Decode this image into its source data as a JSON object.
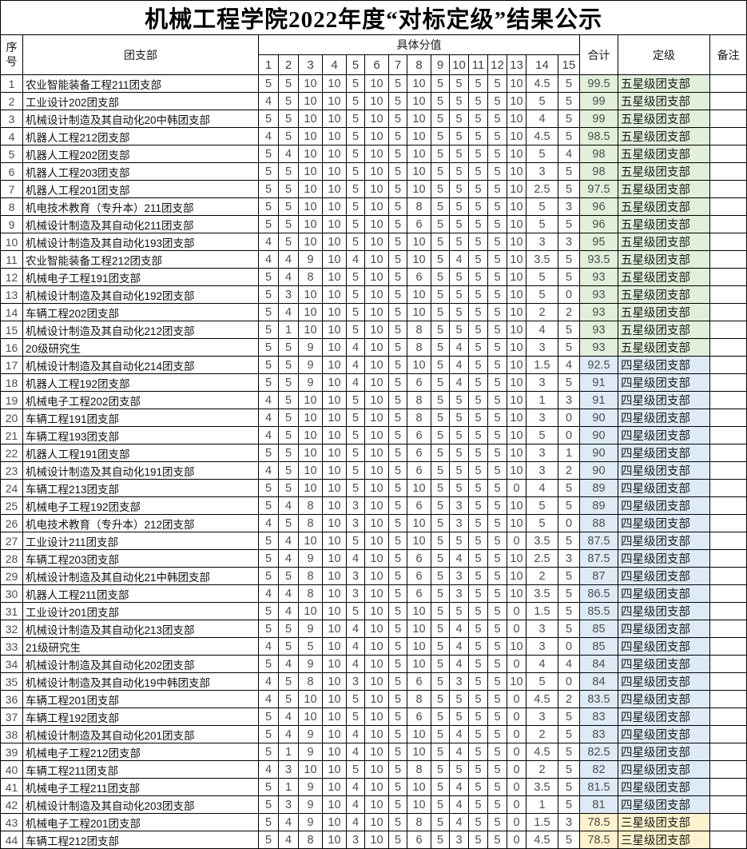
{
  "title": "机械工程学院2022年度“对标定级”结果公示",
  "colors": {
    "five_star_bg": "#E2EFDA",
    "four_star_bg": "#DEEBF7",
    "three_star_bg": "#FFF2CC"
  },
  "table": {
    "header": {
      "index": "序号",
      "branch": "团支部",
      "score_group": "具体分值",
      "score_numbers": [
        "1",
        "2",
        "3",
        "4",
        "5",
        "6",
        "7",
        "8",
        "9",
        "10",
        "11",
        "12",
        "13",
        "14",
        "15"
      ],
      "total": "合计",
      "rating": "定级",
      "remark": "备注"
    },
    "rows": [
      {
        "no": "1",
        "name": "农业智能装备工程211团支部",
        "scores": [
          "5",
          "5",
          "10",
          "10",
          "5",
          "10",
          "5",
          "10",
          "5",
          "5",
          "5",
          "5",
          "10",
          "4.5",
          "5"
        ],
        "total": "99.5",
        "rating": "五星级团支部",
        "tier": "five"
      },
      {
        "no": "2",
        "name": "工业设计202团支部",
        "scores": [
          "4",
          "5",
          "10",
          "10",
          "5",
          "10",
          "5",
          "10",
          "5",
          "5",
          "5",
          "5",
          "10",
          "5",
          "5"
        ],
        "total": "99",
        "rating": "五星级团支部",
        "tier": "five"
      },
      {
        "no": "3",
        "name": "机械设计制造及其自动化20中韩团支部",
        "scores": [
          "5",
          "5",
          "10",
          "10",
          "5",
          "10",
          "5",
          "10",
          "5",
          "5",
          "5",
          "5",
          "10",
          "4",
          "5"
        ],
        "total": "99",
        "rating": "五星级团支部",
        "tier": "five"
      },
      {
        "no": "4",
        "name": "机器人工程212团支部",
        "scores": [
          "4",
          "5",
          "10",
          "10",
          "5",
          "10",
          "5",
          "10",
          "5",
          "5",
          "5",
          "5",
          "10",
          "4.5",
          "5"
        ],
        "total": "98.5",
        "rating": "五星级团支部",
        "tier": "five"
      },
      {
        "no": "5",
        "name": "机器人工程202团支部",
        "scores": [
          "5",
          "4",
          "10",
          "10",
          "5",
          "10",
          "5",
          "10",
          "5",
          "5",
          "5",
          "5",
          "10",
          "5",
          "4"
        ],
        "total": "98",
        "rating": "五星级团支部",
        "tier": "five"
      },
      {
        "no": "6",
        "name": "机器人工程203团支部",
        "scores": [
          "5",
          "5",
          "10",
          "10",
          "5",
          "10",
          "5",
          "10",
          "5",
          "5",
          "5",
          "5",
          "10",
          "3",
          "5"
        ],
        "total": "98",
        "rating": "五星级团支部",
        "tier": "five"
      },
      {
        "no": "7",
        "name": "机器人工程201团支部",
        "scores": [
          "5",
          "5",
          "10",
          "10",
          "5",
          "10",
          "5",
          "10",
          "5",
          "5",
          "5",
          "5",
          "10",
          "2.5",
          "5"
        ],
        "total": "97.5",
        "rating": "五星级团支部",
        "tier": "five"
      },
      {
        "no": "8",
        "name": "机电技术教育（专升本）211团支部",
        "scores": [
          "5",
          "5",
          "10",
          "10",
          "5",
          "10",
          "5",
          "8",
          "5",
          "5",
          "5",
          "5",
          "10",
          "5",
          "3"
        ],
        "total": "96",
        "rating": "五星级团支部",
        "tier": "five"
      },
      {
        "no": "9",
        "name": "机械设计制造及其自动化211团支部",
        "scores": [
          "5",
          "5",
          "10",
          "10",
          "5",
          "10",
          "5",
          "6",
          "5",
          "5",
          "5",
          "5",
          "10",
          "5",
          "5"
        ],
        "total": "96",
        "rating": "五星级团支部",
        "tier": "five"
      },
      {
        "no": "10",
        "name": "机械设计制造及其自动化193团支部",
        "scores": [
          "4",
          "5",
          "10",
          "10",
          "5",
          "10",
          "5",
          "10",
          "5",
          "5",
          "5",
          "5",
          "10",
          "3",
          "3"
        ],
        "total": "95",
        "rating": "五星级团支部",
        "tier": "five"
      },
      {
        "no": "11",
        "name": "农业智能装备工程212团支部",
        "scores": [
          "4",
          "4",
          "9",
          "10",
          "4",
          "10",
          "5",
          "10",
          "5",
          "4",
          "5",
          "5",
          "10",
          "3.5",
          "5"
        ],
        "total": "93.5",
        "rating": "五星级团支部",
        "tier": "five"
      },
      {
        "no": "12",
        "name": "机械电子工程191团支部",
        "scores": [
          "5",
          "4",
          "8",
          "10",
          "5",
          "10",
          "5",
          "6",
          "5",
          "5",
          "5",
          "5",
          "10",
          "5",
          "5"
        ],
        "total": "93",
        "rating": "五星级团支部",
        "tier": "five"
      },
      {
        "no": "13",
        "name": "机械设计制造及其自动化192团支部",
        "scores": [
          "5",
          "3",
          "10",
          "10",
          "5",
          "10",
          "5",
          "10",
          "5",
          "5",
          "5",
          "5",
          "10",
          "5",
          "0"
        ],
        "total": "93",
        "rating": "五星级团支部",
        "tier": "five"
      },
      {
        "no": "14",
        "name": "车辆工程202团支部",
        "scores": [
          "5",
          "4",
          "10",
          "10",
          "5",
          "10",
          "5",
          "10",
          "5",
          "5",
          "5",
          "5",
          "10",
          "2",
          "2"
        ],
        "total": "93",
        "rating": "五星级团支部",
        "tier": "five"
      },
      {
        "no": "15",
        "name": "机械设计制造及其自动化212团支部",
        "scores": [
          "5",
          "1",
          "10",
          "10",
          "5",
          "10",
          "5",
          "8",
          "5",
          "5",
          "5",
          "5",
          "10",
          "4",
          "5"
        ],
        "total": "93",
        "rating": "五星级团支部",
        "tier": "five"
      },
      {
        "no": "16",
        "name": "20级研究生",
        "scores": [
          "5",
          "5",
          "9",
          "10",
          "4",
          "10",
          "5",
          "8",
          "5",
          "4",
          "5",
          "5",
          "10",
          "3",
          "5"
        ],
        "total": "93",
        "rating": "五星级团支部",
        "tier": "five"
      },
      {
        "no": "17",
        "name": "机械设计制造及其自动化214团支部",
        "scores": [
          "5",
          "5",
          "9",
          "10",
          "4",
          "10",
          "5",
          "10",
          "5",
          "4",
          "5",
          "5",
          "10",
          "1.5",
          "4"
        ],
        "total": "92.5",
        "rating": "四星级团支部",
        "tier": "four"
      },
      {
        "no": "18",
        "name": "机器人工程192团支部",
        "scores": [
          "5",
          "5",
          "9",
          "10",
          "4",
          "10",
          "5",
          "6",
          "5",
          "4",
          "5",
          "5",
          "10",
          "3",
          "5"
        ],
        "total": "91",
        "rating": "四星级团支部",
        "tier": "four"
      },
      {
        "no": "19",
        "name": "机械电子工程202团支部",
        "scores": [
          "4",
          "5",
          "10",
          "10",
          "5",
          "10",
          "5",
          "8",
          "5",
          "5",
          "5",
          "5",
          "10",
          "1",
          "3"
        ],
        "total": "91",
        "rating": "四星级团支部",
        "tier": "four"
      },
      {
        "no": "20",
        "name": "车辆工程191团支部",
        "scores": [
          "4",
          "5",
          "10",
          "10",
          "5",
          "10",
          "5",
          "8",
          "5",
          "5",
          "5",
          "5",
          "10",
          "3",
          "0"
        ],
        "total": "90",
        "rating": "四星级团支部",
        "tier": "four"
      },
      {
        "no": "21",
        "name": "车辆工程193团支部",
        "scores": [
          "4",
          "5",
          "10",
          "10",
          "5",
          "10",
          "5",
          "6",
          "5",
          "5",
          "5",
          "5",
          "10",
          "5",
          "0"
        ],
        "total": "90",
        "rating": "四星级团支部",
        "tier": "four"
      },
      {
        "no": "22",
        "name": "机器人工程191团支部",
        "scores": [
          "5",
          "5",
          "10",
          "10",
          "5",
          "10",
          "5",
          "6",
          "5",
          "5",
          "5",
          "5",
          "10",
          "3",
          "1"
        ],
        "total": "90",
        "rating": "四星级团支部",
        "tier": "four"
      },
      {
        "no": "23",
        "name": "机械设计制造及其自动化191团支部",
        "scores": [
          "4",
          "5",
          "10",
          "10",
          "5",
          "10",
          "5",
          "6",
          "5",
          "5",
          "5",
          "5",
          "10",
          "3",
          "2"
        ],
        "total": "90",
        "rating": "四星级团支部",
        "tier": "four"
      },
      {
        "no": "24",
        "name": "车辆工程213团支部",
        "scores": [
          "5",
          "5",
          "10",
          "10",
          "5",
          "10",
          "5",
          "10",
          "5",
          "5",
          "5",
          "5",
          "0",
          "4",
          "5"
        ],
        "total": "89",
        "rating": "四星级团支部",
        "tier": "four"
      },
      {
        "no": "25",
        "name": "机械电子工程192团支部",
        "scores": [
          "5",
          "4",
          "8",
          "10",
          "3",
          "10",
          "5",
          "6",
          "5",
          "3",
          "5",
          "5",
          "10",
          "5",
          "5"
        ],
        "total": "89",
        "rating": "四星级团支部",
        "tier": "four"
      },
      {
        "no": "26",
        "name": "机电技术教育（专升本）212团支部",
        "scores": [
          "4",
          "5",
          "8",
          "10",
          "3",
          "10",
          "5",
          "10",
          "5",
          "3",
          "5",
          "5",
          "10",
          "5",
          "0"
        ],
        "total": "88",
        "rating": "四星级团支部",
        "tier": "four"
      },
      {
        "no": "27",
        "name": "工业设计211团支部",
        "scores": [
          "5",
          "4",
          "10",
          "10",
          "5",
          "10",
          "5",
          "10",
          "5",
          "5",
          "5",
          "5",
          "0",
          "3.5",
          "5"
        ],
        "total": "87.5",
        "rating": "四星级团支部",
        "tier": "four"
      },
      {
        "no": "28",
        "name": "车辆工程203团支部",
        "scores": [
          "5",
          "4",
          "9",
          "10",
          "4",
          "10",
          "5",
          "6",
          "5",
          "4",
          "5",
          "5",
          "10",
          "2.5",
          "3"
        ],
        "total": "87.5",
        "rating": "四星级团支部",
        "tier": "four"
      },
      {
        "no": "29",
        "name": "机械设计制造及其自动化21中韩团支部",
        "scores": [
          "5",
          "5",
          "8",
          "10",
          "3",
          "10",
          "5",
          "6",
          "5",
          "3",
          "5",
          "5",
          "10",
          "2",
          "5"
        ],
        "total": "87",
        "rating": "四星级团支部",
        "tier": "four"
      },
      {
        "no": "30",
        "name": "机器人工程211团支部",
        "scores": [
          "4",
          "4",
          "8",
          "10",
          "3",
          "10",
          "5",
          "6",
          "5",
          "3",
          "5",
          "5",
          "10",
          "3.5",
          "5"
        ],
        "total": "86.5",
        "rating": "四星级团支部",
        "tier": "four"
      },
      {
        "no": "31",
        "name": "工业设计201团支部",
        "scores": [
          "5",
          "4",
          "10",
          "10",
          "5",
          "10",
          "5",
          "10",
          "5",
          "5",
          "5",
          "5",
          "0",
          "1.5",
          "5"
        ],
        "total": "85.5",
        "rating": "四星级团支部",
        "tier": "four"
      },
      {
        "no": "32",
        "name": "机械设计制造及其自动化213团支部",
        "scores": [
          "5",
          "5",
          "9",
          "10",
          "4",
          "10",
          "5",
          "10",
          "5",
          "4",
          "5",
          "5",
          "0",
          "3",
          "5"
        ],
        "total": "85",
        "rating": "四星级团支部",
        "tier": "four"
      },
      {
        "no": "33",
        "name": "21级研究生",
        "scores": [
          "4",
          "5",
          "5",
          "10",
          "4",
          "10",
          "5",
          "10",
          "5",
          "4",
          "5",
          "5",
          "10",
          "3",
          "0"
        ],
        "total": "85",
        "rating": "四星级团支部",
        "tier": "four"
      },
      {
        "no": "34",
        "name": "机械设计制造及其自动化202团支部",
        "scores": [
          "5",
          "4",
          "9",
          "10",
          "4",
          "10",
          "5",
          "10",
          "5",
          "4",
          "5",
          "5",
          "0",
          "4",
          "4"
        ],
        "total": "84",
        "rating": "四星级团支部",
        "tier": "four"
      },
      {
        "no": "35",
        "name": "机械设计制造及其自动化19中韩团支部",
        "scores": [
          "4",
          "5",
          "8",
          "10",
          "3",
          "10",
          "5",
          "6",
          "5",
          "3",
          "5",
          "5",
          "10",
          "5",
          "0"
        ],
        "total": "84",
        "rating": "四星级团支部",
        "tier": "four"
      },
      {
        "no": "36",
        "name": "车辆工程201团支部",
        "scores": [
          "4",
          "5",
          "10",
          "10",
          "5",
          "10",
          "5",
          "8",
          "5",
          "5",
          "5",
          "5",
          "0",
          "4.5",
          "2"
        ],
        "total": "83.5",
        "rating": "四星级团支部",
        "tier": "four"
      },
      {
        "no": "37",
        "name": "车辆工程192团支部",
        "scores": [
          "5",
          "4",
          "10",
          "10",
          "5",
          "10",
          "5",
          "6",
          "5",
          "5",
          "5",
          "5",
          "0",
          "3",
          "5"
        ],
        "total": "83",
        "rating": "四星级团支部",
        "tier": "four"
      },
      {
        "no": "38",
        "name": "机械设计制造及其自动化201团支部",
        "scores": [
          "5",
          "4",
          "9",
          "10",
          "4",
          "10",
          "5",
          "10",
          "5",
          "4",
          "5",
          "5",
          "0",
          "2",
          "5"
        ],
        "total": "83",
        "rating": "四星级团支部",
        "tier": "four"
      },
      {
        "no": "39",
        "name": "机械电子工程212团支部",
        "scores": [
          "5",
          "1",
          "9",
          "10",
          "4",
          "10",
          "5",
          "10",
          "5",
          "4",
          "5",
          "5",
          "0",
          "4.5",
          "5"
        ],
        "total": "82.5",
        "rating": "四星级团支部",
        "tier": "four"
      },
      {
        "no": "40",
        "name": "车辆工程211团支部",
        "scores": [
          "4",
          "3",
          "10",
          "10",
          "5",
          "10",
          "5",
          "8",
          "5",
          "5",
          "5",
          "5",
          "0",
          "2",
          "5"
        ],
        "total": "82",
        "rating": "四星级团支部",
        "tier": "four"
      },
      {
        "no": "41",
        "name": "机械电子工程211团支部",
        "scores": [
          "5",
          "1",
          "9",
          "10",
          "4",
          "10",
          "5",
          "10",
          "5",
          "4",
          "5",
          "5",
          "0",
          "3.5",
          "5"
        ],
        "total": "81.5",
        "rating": "四星级团支部",
        "tier": "four"
      },
      {
        "no": "42",
        "name": "机械设计制造及其自动化203团支部",
        "scores": [
          "5",
          "3",
          "9",
          "10",
          "4",
          "10",
          "5",
          "10",
          "5",
          "4",
          "5",
          "5",
          "0",
          "1",
          "5"
        ],
        "total": "81",
        "rating": "四星级团支部",
        "tier": "four"
      },
      {
        "no": "43",
        "name": "机械电子工程201团支部",
        "scores": [
          "5",
          "4",
          "9",
          "10",
          "4",
          "10",
          "5",
          "8",
          "5",
          "4",
          "5",
          "5",
          "0",
          "1.5",
          "3"
        ],
        "total": "78.5",
        "rating": "三星级团支部",
        "tier": "three"
      },
      {
        "no": "44",
        "name": "车辆工程212团支部",
        "scores": [
          "5",
          "4",
          "8",
          "10",
          "3",
          "10",
          "5",
          "6",
          "5",
          "3",
          "5",
          "5",
          "0",
          "4.5",
          "5"
        ],
        "total": "78.5",
        "rating": "三星级团支部",
        "tier": "three"
      }
    ]
  }
}
